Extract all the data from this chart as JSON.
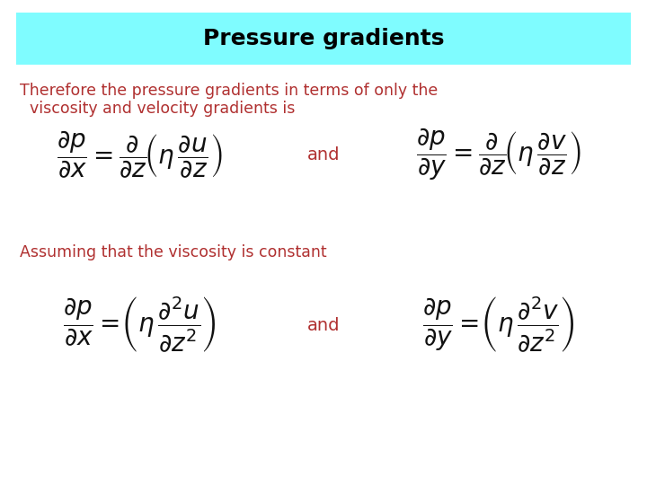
{
  "title": "Pressure gradients",
  "title_bg_color": "#7FFCFF",
  "title_text_color": "#000000",
  "body_bg_color": "#FFFFFF",
  "text_color_red": "#B03030",
  "text_color_black": "#111111",
  "paragraph1_line1": "Therefore the pressure gradients in terms of only the",
  "paragraph1_line2": "  viscosity and velocity gradients is",
  "paragraph2": "Assuming that the viscosity is constant",
  "and_label": "and",
  "figsize": [
    7.2,
    5.4
  ],
  "dpi": 100
}
